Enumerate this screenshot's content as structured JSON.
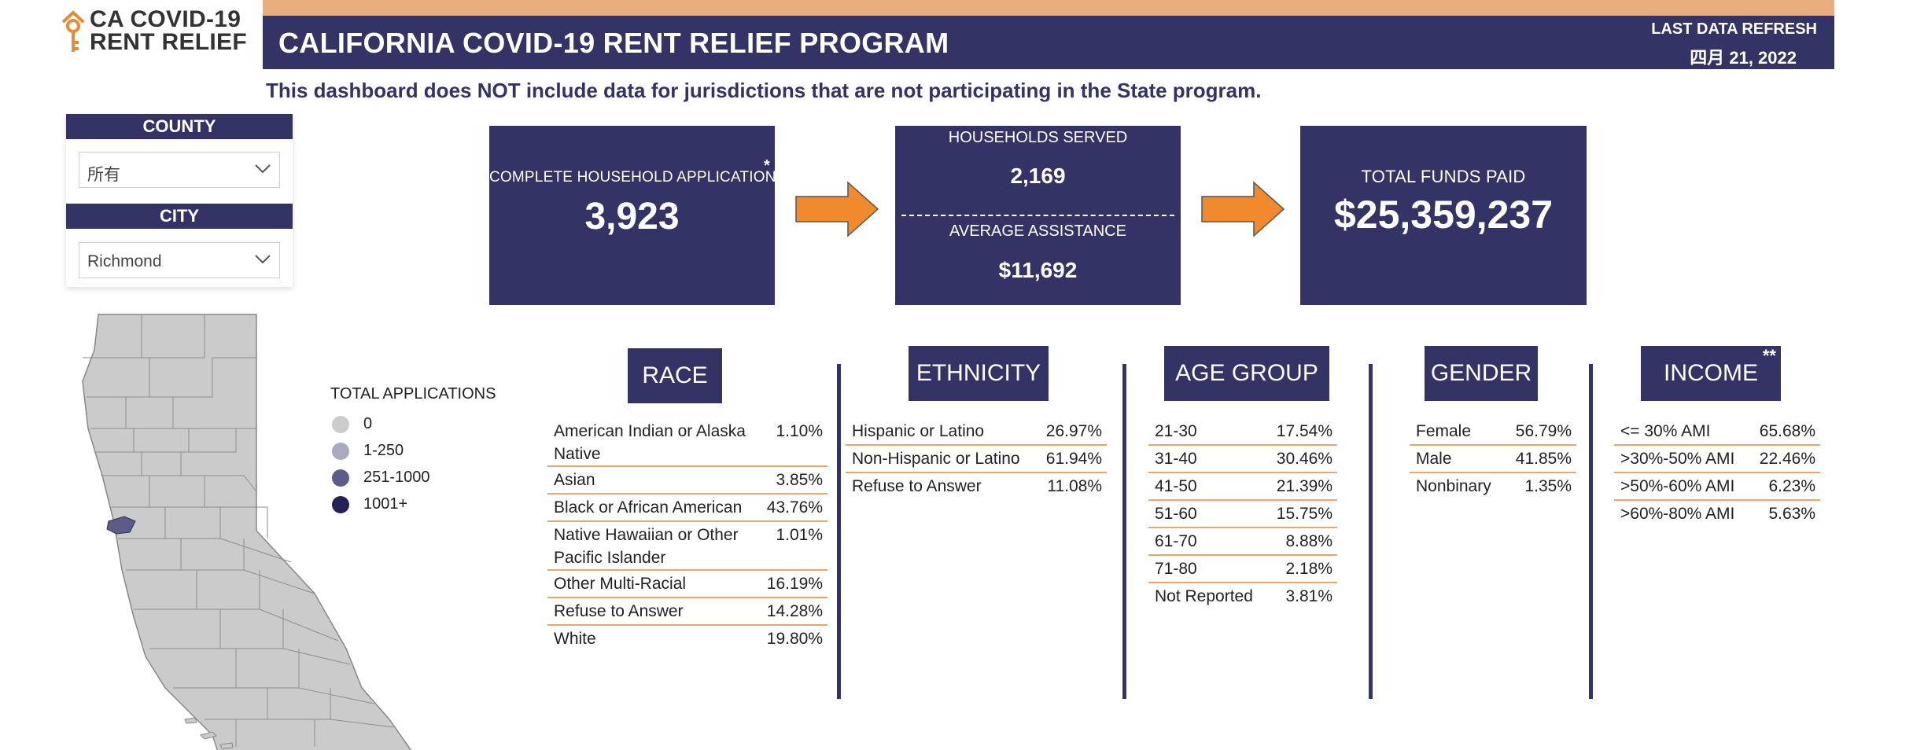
{
  "logo": {
    "line1": "CA COVID-19",
    "line2": "RENT RELIEF"
  },
  "header": {
    "title": "CALIFORNIA COVID-19 RENT RELIEF PROGRAM",
    "refresh_label": "LAST DATA REFRESH",
    "refresh_date": "四月 21, 2022"
  },
  "disclaimer": "This dashboard does NOT include data for jurisdictions that are not participating in the State program.",
  "filters": {
    "county": {
      "label": "COUNTY",
      "value": "所有"
    },
    "city": {
      "label": "CITY",
      "value": "Richmond"
    }
  },
  "legend": {
    "title": "TOTAL APPLICATIONS",
    "items": [
      {
        "label": "0",
        "color": "#cccccc"
      },
      {
        "label": "1-250",
        "color": "#a9a9c2"
      },
      {
        "label": "251-1000",
        "color": "#5c5c8a"
      },
      {
        "label": "1001+",
        "color": "#222255"
      }
    ]
  },
  "kpis": {
    "applications": {
      "label": "COMPLETE HOUSEHOLD APPLICATIONS",
      "marker": "*",
      "value": "3,923"
    },
    "households": {
      "label": "HOUSEHOLDS SERVED",
      "value": "2,169"
    },
    "avg_assistance": {
      "label": "AVERAGE ASSISTANCE",
      "value": "$11,692"
    },
    "funds": {
      "label": "TOTAL FUNDS PAID",
      "value": "$25,359,237"
    }
  },
  "race": {
    "title": "RACE",
    "rows": [
      {
        "label": "American Indian or Alaska Native",
        "value": "1.10%"
      },
      {
        "label": "Asian",
        "value": "3.85%"
      },
      {
        "label": "Black or African American",
        "value": "43.76%"
      },
      {
        "label": "Native Hawaiian or Other Pacific Islander",
        "value": "1.01%"
      },
      {
        "label": "Other Multi-Racial",
        "value": "16.19%"
      },
      {
        "label": "Refuse to Answer",
        "value": "14.28%"
      },
      {
        "label": "White",
        "value": "19.80%"
      }
    ]
  },
  "ethnicity": {
    "title": "ETHNICITY",
    "rows": [
      {
        "label": "Hispanic or Latino",
        "value": "26.97%"
      },
      {
        "label": "Non-Hispanic or Latino",
        "value": "61.94%"
      },
      {
        "label": "Refuse to Answer",
        "value": "11.08%"
      }
    ]
  },
  "age": {
    "title": "AGE GROUP",
    "rows": [
      {
        "label": "21-30",
        "value": "17.54%"
      },
      {
        "label": "31-40",
        "value": "30.46%"
      },
      {
        "label": "41-50",
        "value": "21.39%"
      },
      {
        "label": "51-60",
        "value": "15.75%"
      },
      {
        "label": "61-70",
        "value": "8.88%"
      },
      {
        "label": "71-80",
        "value": "2.18%"
      },
      {
        "label": "Not Reported",
        "value": "3.81%"
      }
    ]
  },
  "gender": {
    "title": "GENDER",
    "rows": [
      {
        "label": "Female",
        "value": "56.79%"
      },
      {
        "label": "Male",
        "value": "41.85%"
      },
      {
        "label": "Nonbinary",
        "value": "1.35%"
      }
    ]
  },
  "income": {
    "title": "INCOME",
    "marker": "**",
    "rows": [
      {
        "label": "<= 30% AMI",
        "value": "65.68%"
      },
      {
        "label": ">30%-50% AMI",
        "value": "22.46%"
      },
      {
        "label": ">50%-60% AMI",
        "value": "6.23%"
      },
      {
        "label": ">60%-80% AMI",
        "value": "5.63%"
      }
    ]
  },
  "colors": {
    "navy": "#333366",
    "accent": "#f08a2c",
    "topbar": "#e9ac7d",
    "divider": "#f0a366"
  },
  "icons": {
    "logo": "house-key-icon",
    "dropdown": "chevron-down-icon",
    "flow": "arrow-right-icon"
  }
}
